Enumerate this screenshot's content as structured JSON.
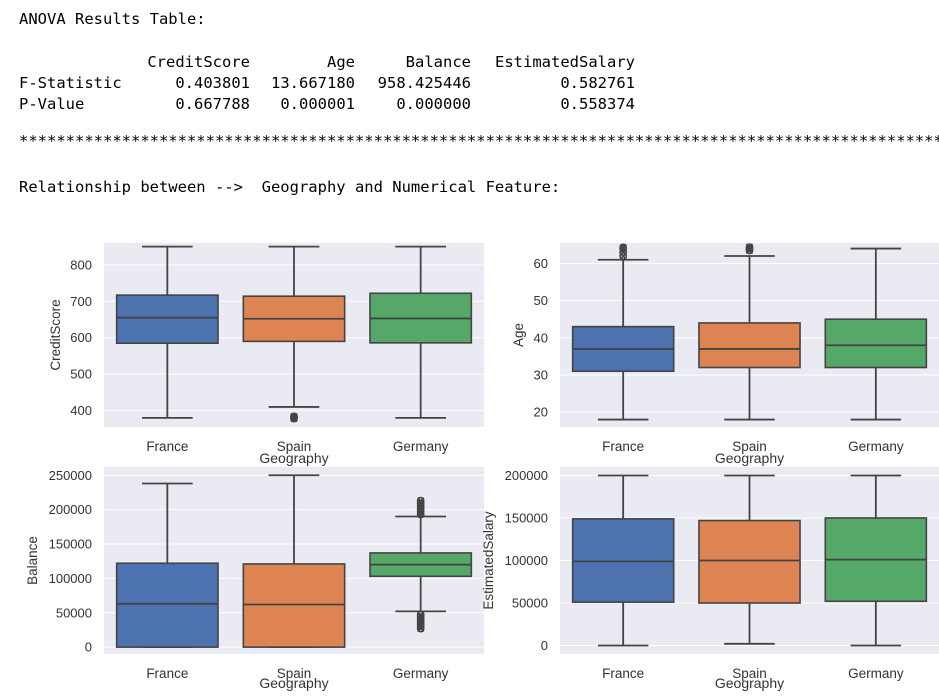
{
  "header": {
    "title": "ANOVA Results Table:",
    "separator": "*************************************************************************************************************************",
    "relationship": "Relationship between -->  Geography and Numerical Feature:"
  },
  "anova_table": {
    "columns": [
      "CreditScore",
      "Age",
      "Balance",
      "EstimatedSalary"
    ],
    "rows": [
      {
        "label": "F-Statistic",
        "values": [
          "0.403801",
          "13.667180",
          "958.425446",
          "0.582761"
        ]
      },
      {
        "label": "P-Value",
        "values": [
          "0.667788",
          "0.000001",
          "0.000000",
          "0.558374"
        ]
      }
    ]
  },
  "colors": {
    "background": "#eaeaf2",
    "grid": "#ffffff",
    "whisker": "#444444",
    "France": "#4c72b0",
    "Spain": "#dd8452",
    "Germany": "#55a868"
  },
  "chart_data": [
    {
      "type": "box",
      "xlabel": "Geography",
      "ylabel": "CreditScore",
      "categories": [
        "France",
        "Spain",
        "Germany"
      ],
      "ylim": [
        355,
        860
      ],
      "yticks": [
        400,
        500,
        600,
        700,
        800
      ],
      "ytick_labels": [
        "400",
        "500",
        "600",
        "700",
        "800"
      ],
      "boxes": [
        {
          "q1": 585,
          "median": 655,
          "q3": 717,
          "whislo": 380,
          "whishi": 850,
          "outliers": []
        },
        {
          "q1": 590,
          "median": 652,
          "q3": 714,
          "whislo": 410,
          "whishi": 850,
          "outliers": [
            384,
            378,
            381
          ]
        },
        {
          "q1": 586,
          "median": 653,
          "q3": 722,
          "whislo": 380,
          "whishi": 850,
          "outliers": []
        }
      ]
    },
    {
      "type": "box",
      "xlabel": "Geography",
      "ylabel": "Age",
      "categories": [
        "France",
        "Spain",
        "Germany"
      ],
      "ylim": [
        16,
        65.5
      ],
      "yticks": [
        20,
        30,
        40,
        50,
        60
      ],
      "ytick_labels": [
        "20",
        "30",
        "40",
        "50",
        "60"
      ],
      "boxes": [
        {
          "q1": 31,
          "median": 37,
          "q3": 43,
          "whislo": 18,
          "whishi": 61,
          "outliers": [
            62,
            63,
            64,
            64.3
          ]
        },
        {
          "q1": 32,
          "median": 37,
          "q3": 44,
          "whislo": 18,
          "whishi": 62,
          "outliers": [
            63.5,
            64,
            64.4
          ]
        },
        {
          "q1": 32,
          "median": 38,
          "q3": 45,
          "whislo": 18,
          "whishi": 64,
          "outliers": []
        }
      ]
    },
    {
      "type": "box",
      "xlabel": "Geography",
      "ylabel": "Balance",
      "categories": [
        "France",
        "Spain",
        "Germany"
      ],
      "ylim": [
        -10000,
        262000
      ],
      "yticks": [
        0,
        50000,
        100000,
        150000,
        200000,
        250000
      ],
      "ytick_labels": [
        "0",
        "50000",
        "100000",
        "150000",
        "200000",
        "250000"
      ],
      "boxes": [
        {
          "q1": 0,
          "median": 63000,
          "q3": 122000,
          "whislo": 0,
          "whishi": 238000,
          "outliers": []
        },
        {
          "q1": 0,
          "median": 62000,
          "q3": 121000,
          "whislo": 0,
          "whishi": 250000,
          "outliers": []
        },
        {
          "q1": 103000,
          "median": 120000,
          "q3": 137000,
          "whislo": 52000,
          "whishi": 190000,
          "outliers": [
            47000,
            43000,
            40000,
            36000,
            33000,
            30000,
            27000,
            193000,
            197000,
            201000,
            205000,
            209000,
            213000
          ]
        }
      ]
    },
    {
      "type": "box",
      "xlabel": "Geography",
      "ylabel": "EstimatedSalary",
      "categories": [
        "France",
        "Spain",
        "Germany"
      ],
      "ylim": [
        -10000,
        210000
      ],
      "yticks": [
        0,
        50000,
        100000,
        150000,
        200000
      ],
      "ytick_labels": [
        "0",
        "50000",
        "100000",
        "150000",
        "200000"
      ],
      "boxes": [
        {
          "q1": 51000,
          "median": 99000,
          "q3": 149000,
          "whislo": 0,
          "whishi": 200000,
          "outliers": []
        },
        {
          "q1": 50000,
          "median": 100000,
          "q3": 147000,
          "whislo": 2000,
          "whishi": 200000,
          "outliers": []
        },
        {
          "q1": 52000,
          "median": 101000,
          "q3": 150000,
          "whislo": 0,
          "whishi": 200000,
          "outliers": []
        }
      ]
    }
  ]
}
